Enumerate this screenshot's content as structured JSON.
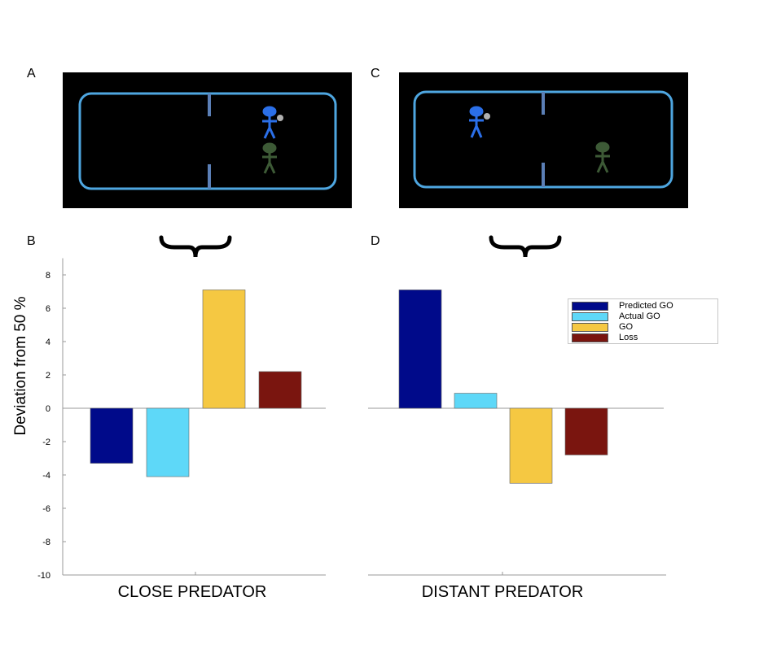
{
  "panels": {
    "A": "A",
    "B": "B",
    "C": "C",
    "D": "D"
  },
  "colors": {
    "arena_border": "#4ea6e0",
    "divider": "#5b7fb6",
    "player": "#2b6fe8",
    "predator": "#3d5a36",
    "ball": "#b0b0b0",
    "predicted_go": "#000a8a",
    "actual_go": "#5ed8f8",
    "go": "#f5c842",
    "loss": "#7a150f"
  },
  "ylabel": "Deviation from 50 %",
  "legend": [
    {
      "label": "Predicted GO",
      "color": "#000a8a"
    },
    {
      "label": "Actual GO",
      "color": "#5ed8f8"
    },
    {
      "label": "GO",
      "color": "#f5c842"
    },
    {
      "label": "Loss",
      "color": "#7a150f"
    }
  ],
  "chart_data": [
    {
      "type": "bar",
      "xlabel": "CLOSE PREDATOR",
      "ylabel": "Deviation from 50 %",
      "ylim": [
        -10,
        9
      ],
      "yticks": [
        8,
        6,
        4,
        2,
        0,
        -2,
        -4,
        -6,
        -8,
        -10
      ],
      "series": [
        {
          "name": "Predicted GO",
          "values": [
            -3.3
          ]
        },
        {
          "name": "Actual GO",
          "values": [
            -4.1
          ]
        },
        {
          "name": "GO",
          "values": [
            7.1
          ]
        },
        {
          "name": "Loss",
          "values": [
            2.2
          ]
        }
      ]
    },
    {
      "type": "bar",
      "xlabel": "DISTANT PREDATOR",
      "ylim": [
        -10,
        9
      ],
      "series": [
        {
          "name": "Predicted GO",
          "values": [
            7.1
          ]
        },
        {
          "name": "Actual GO",
          "values": [
            0.9
          ]
        },
        {
          "name": "GO",
          "values": [
            -4.5
          ]
        },
        {
          "name": "Loss",
          "values": [
            -2.8
          ]
        }
      ],
      "legend": "top-right"
    }
  ]
}
